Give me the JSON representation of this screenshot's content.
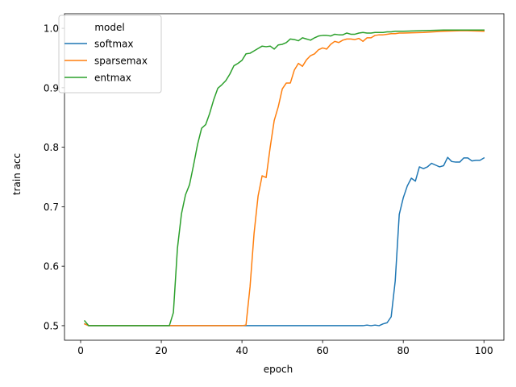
{
  "chart_data": {
    "type": "line",
    "xlabel": "epoch",
    "ylabel": "train acc",
    "xlim": [
      -4,
      104.95
    ],
    "ylim": [
      0.4755,
      1.0245
    ],
    "xticks": [
      0,
      20,
      40,
      60,
      80,
      100
    ],
    "yticks": [
      0.5,
      0.6,
      0.7,
      0.8,
      0.9,
      1.0
    ],
    "ytick_labels": [
      "0.5",
      "0.6",
      "0.7",
      "0.8",
      "0.9",
      "1.0"
    ],
    "grid": false,
    "legend": {
      "title": "model",
      "placement": "top-left"
    },
    "colors": {
      "softmax": "#1f77b4",
      "sparsemax": "#ff7f0e",
      "entmax": "#2ca02c"
    },
    "series": [
      {
        "name": "softmax",
        "x": [
          1,
          2,
          70,
          71,
          72,
          73,
          74,
          75,
          76,
          77,
          78,
          79,
          80,
          81,
          82,
          83,
          84,
          85,
          86,
          87,
          88,
          89,
          90,
          91,
          92,
          93,
          94,
          95,
          96,
          97,
          98,
          99,
          100
        ],
        "values": [
          0.503,
          0.5,
          0.5,
          0.501,
          0.5,
          0.501,
          0.5,
          0.503,
          0.505,
          0.515,
          0.575,
          0.687,
          0.715,
          0.735,
          0.748,
          0.743,
          0.767,
          0.764,
          0.767,
          0.773,
          0.77,
          0.767,
          0.769,
          0.783,
          0.776,
          0.775,
          0.775,
          0.782,
          0.782,
          0.777,
          0.778,
          0.778,
          0.782
        ]
      },
      {
        "name": "sparsemax",
        "x": [
          1,
          2,
          40,
          41,
          42,
          43,
          44,
          45,
          46,
          47,
          48,
          49,
          50,
          51,
          52,
          53,
          54,
          55,
          56,
          57,
          58,
          59,
          60,
          61,
          62,
          63,
          64,
          65,
          66,
          67,
          68,
          69,
          70,
          71,
          72,
          73,
          74,
          75,
          76,
          77,
          78,
          79,
          80,
          85,
          90,
          95,
          100
        ],
        "values": [
          0.503,
          0.5,
          0.5,
          0.501,
          0.565,
          0.655,
          0.718,
          0.752,
          0.749,
          0.8,
          0.845,
          0.868,
          0.898,
          0.908,
          0.908,
          0.93,
          0.941,
          0.936,
          0.947,
          0.954,
          0.957,
          0.964,
          0.967,
          0.965,
          0.973,
          0.978,
          0.976,
          0.98,
          0.982,
          0.982,
          0.981,
          0.983,
          0.978,
          0.984,
          0.984,
          0.988,
          0.989,
          0.989,
          0.99,
          0.991,
          0.991,
          0.992,
          0.992,
          0.993,
          0.995,
          0.996,
          0.995
        ]
      },
      {
        "name": "entmax",
        "x": [
          1,
          2,
          22,
          23,
          24,
          25,
          26,
          27,
          28,
          29,
          30,
          31,
          32,
          33,
          34,
          35,
          36,
          37,
          38,
          39,
          40,
          41,
          42,
          43,
          44,
          45,
          46,
          47,
          48,
          49,
          50,
          51,
          52,
          53,
          54,
          55,
          56,
          57,
          58,
          59,
          60,
          61,
          62,
          63,
          64,
          65,
          66,
          67,
          68,
          69,
          70,
          71,
          72,
          73,
          74,
          75,
          76,
          77,
          78,
          79,
          80,
          85,
          90,
          95,
          100
        ],
        "values": [
          0.508,
          0.5,
          0.5,
          0.522,
          0.63,
          0.688,
          0.72,
          0.737,
          0.77,
          0.805,
          0.832,
          0.838,
          0.857,
          0.88,
          0.899,
          0.905,
          0.912,
          0.923,
          0.937,
          0.941,
          0.946,
          0.957,
          0.958,
          0.962,
          0.966,
          0.97,
          0.969,
          0.97,
          0.965,
          0.972,
          0.973,
          0.976,
          0.982,
          0.981,
          0.979,
          0.984,
          0.982,
          0.98,
          0.984,
          0.987,
          0.988,
          0.988,
          0.987,
          0.99,
          0.989,
          0.989,
          0.992,
          0.99,
          0.99,
          0.992,
          0.993,
          0.992,
          0.992,
          0.993,
          0.993,
          0.993,
          0.994,
          0.994,
          0.995,
          0.995,
          0.995,
          0.996,
          0.997,
          0.997,
          0.997
        ]
      }
    ]
  }
}
